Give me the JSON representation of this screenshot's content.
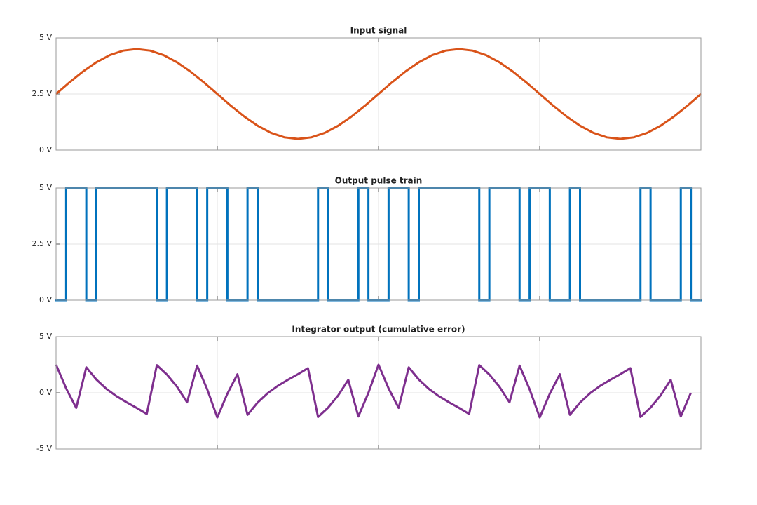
{
  "chart_data": [
    {
      "type": "line",
      "title": "Input signal",
      "color": "#d95319",
      "grid": true,
      "xlim": [
        0,
        4
      ],
      "xticks": [
        1,
        2,
        3
      ],
      "ylim": [
        0,
        5
      ],
      "yticks": [
        {
          "value": 0,
          "label": "0 V"
        },
        {
          "value": 2.5,
          "label": "2.5 V"
        },
        {
          "value": 5,
          "label": "5 V"
        }
      ],
      "x": [
        0,
        0.0833,
        0.1667,
        0.25,
        0.3333,
        0.4167,
        0.5,
        0.5833,
        0.6667,
        0.75,
        0.8333,
        0.9167,
        1,
        1.0833,
        1.1667,
        1.25,
        1.3333,
        1.4167,
        1.5,
        1.5833,
        1.6667,
        1.75,
        1.8333,
        1.9167,
        2,
        2.0833,
        2.1667,
        2.25,
        2.3333,
        2.4167,
        2.5,
        2.5833,
        2.6667,
        2.75,
        2.8333,
        2.9167,
        3,
        3.0833,
        3.1667,
        3.25,
        3.3333,
        3.4167,
        3.5,
        3.5833,
        3.6667,
        3.75,
        3.8333,
        3.9167,
        4
      ],
      "values": [
        2.5,
        3.018,
        3.5,
        3.914,
        4.232,
        4.432,
        4.5,
        4.432,
        4.232,
        3.914,
        3.5,
        3.018,
        2.5,
        1.982,
        1.5,
        1.086,
        0.768,
        0.568,
        0.5,
        0.568,
        0.768,
        1.086,
        1.5,
        1.982,
        2.5,
        3.018,
        3.5,
        3.914,
        4.232,
        4.432,
        4.5,
        4.432,
        4.232,
        3.914,
        3.5,
        3.018,
        2.5,
        1.982,
        1.5,
        1.086,
        0.768,
        0.568,
        0.5,
        0.568,
        0.768,
        1.086,
        1.5,
        1.982,
        2.5
      ]
    },
    {
      "type": "step",
      "title": "Output pulse train",
      "color": "#0072bd",
      "grid": true,
      "xlim": [
        0,
        4
      ],
      "xticks": [
        1,
        2,
        3
      ],
      "ylim": [
        0,
        5
      ],
      "yticks": [
        {
          "value": 0,
          "label": "0 V"
        },
        {
          "value": 2.5,
          "label": "2.5 V"
        },
        {
          "value": 5,
          "label": "5 V"
        }
      ],
      "x": [
        0,
        0.0625,
        0.125,
        0.1875,
        0.25,
        0.3125,
        0.375,
        0.4375,
        0.5,
        0.5625,
        0.625,
        0.6875,
        0.75,
        0.8125,
        0.875,
        0.9375,
        1,
        1.0625,
        1.125,
        1.1875,
        1.25,
        1.3125,
        1.375,
        1.4375,
        1.5,
        1.5625,
        1.625,
        1.6875,
        1.75,
        1.8125,
        1.875,
        1.9375,
        2,
        2.0625,
        2.125,
        2.1875,
        2.25,
        2.3125,
        2.375,
        2.4375,
        2.5,
        2.5625,
        2.625,
        2.6875,
        2.75,
        2.8125,
        2.875,
        2.9375,
        3,
        3.0625,
        3.125,
        3.1875,
        3.25,
        3.3125,
        3.375,
        3.4375,
        3.5,
        3.5625,
        3.625,
        3.6875,
        3.75,
        3.8125,
        3.875,
        3.9375
      ],
      "values": [
        0,
        5,
        5,
        0,
        5,
        5,
        5,
        5,
        5,
        5,
        0,
        5,
        5,
        5,
        0,
        5,
        5,
        0,
        0,
        5,
        0,
        0,
        0,
        0,
        0,
        0,
        5,
        0,
        0,
        0,
        5,
        0,
        0,
        5,
        5,
        0,
        5,
        5,
        5,
        5,
        5,
        5,
        0,
        5,
        5,
        5,
        0,
        5,
        5,
        0,
        0,
        5,
        0,
        0,
        0,
        0,
        0,
        0,
        5,
        0,
        0,
        0,
        5,
        0
      ]
    },
    {
      "type": "line",
      "title": "Integrator output (cumulative error)",
      "color": "#7e2f8e",
      "grid": true,
      "xlim": [
        0,
        4
      ],
      "xticks": [
        1,
        2,
        3
      ],
      "ylim": [
        -5,
        5
      ],
      "yticks": [
        {
          "value": -5,
          "label": "-5 V"
        },
        {
          "value": 0,
          "label": "0 V"
        },
        {
          "value": 5,
          "label": "5 V"
        }
      ],
      "x": [
        0,
        0.0625,
        0.125,
        0.1875,
        0.25,
        0.3125,
        0.375,
        0.4375,
        0.5,
        0.5625,
        0.625,
        0.6875,
        0.75,
        0.8125,
        0.875,
        0.9375,
        1,
        1.0625,
        1.125,
        1.1875,
        1.25,
        1.3125,
        1.375,
        1.4375,
        1.5,
        1.5625,
        1.625,
        1.6875,
        1.75,
        1.8125,
        1.875,
        1.9375,
        2,
        2.0625,
        2.125,
        2.1875,
        2.25,
        2.3125,
        2.375,
        2.4375,
        2.5,
        2.5625,
        2.625,
        2.6875,
        2.75,
        2.8125,
        2.875,
        2.9375,
        3,
        3.0625,
        3.125,
        3.1875,
        3.25,
        3.3125,
        3.375,
        3.4375,
        3.5,
        3.5625,
        3.625,
        3.6875,
        3.75,
        3.8125,
        3.875,
        3.9375
      ],
      "values": [
        2.5,
        0.39,
        -1.345,
        2.266,
        1.18,
        0.343,
        -0.309,
        -0.847,
        -1.347,
        -1.885,
        2.463,
        1.626,
        0.54,
        -0.849,
        2.416,
        0.306,
        -2.194,
        -0.084,
        1.651,
        -1.96,
        -0.874,
        -0.037,
        0.615,
        1.153,
        1.653,
        2.191,
        -2.157,
        -1.32,
        -0.234,
        1.155,
        -2.11,
        0,
        2.5,
        0.39,
        -1.345,
        2.266,
        1.18,
        0.343,
        -0.309,
        -0.847,
        -1.347,
        -1.885,
        2.463,
        1.626,
        0.54,
        -0.849,
        2.416,
        0.306,
        -2.194,
        -0.084,
        1.651,
        -1.96,
        -0.874,
        -0.037,
        0.615,
        1.153,
        1.653,
        2.191,
        -2.157,
        -1.32,
        -0.234,
        1.155,
        -2.11,
        0
      ]
    }
  ]
}
